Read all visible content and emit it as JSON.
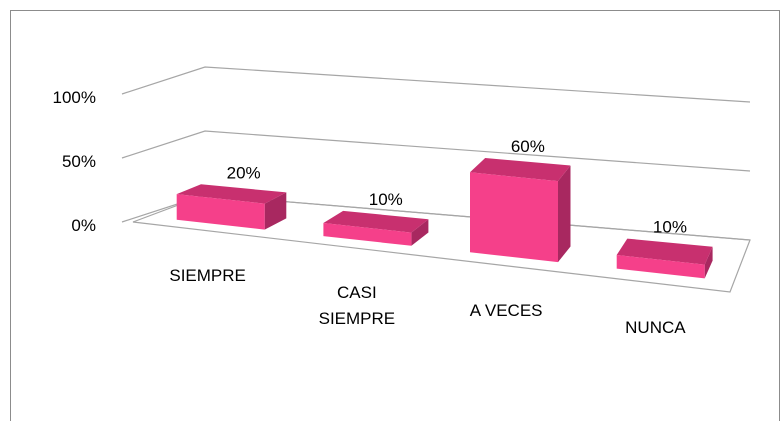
{
  "chart_data": {
    "type": "bar3d",
    "categories": [
      "SIEMPRE",
      "CASI SIEMPRE",
      "A VECES",
      "NUNCA"
    ],
    "values": [
      20,
      10,
      60,
      10
    ],
    "value_labels": [
      "20%",
      "10%",
      "60%",
      "10%"
    ],
    "color": "#f5408a",
    "ylim": [
      0,
      100
    ],
    "yticks": [
      {
        "value": 0,
        "label": "0%"
      },
      {
        "value": 50,
        "label": "50%"
      },
      {
        "value": 100,
        "label": "100%"
      }
    ],
    "grid": true
  }
}
